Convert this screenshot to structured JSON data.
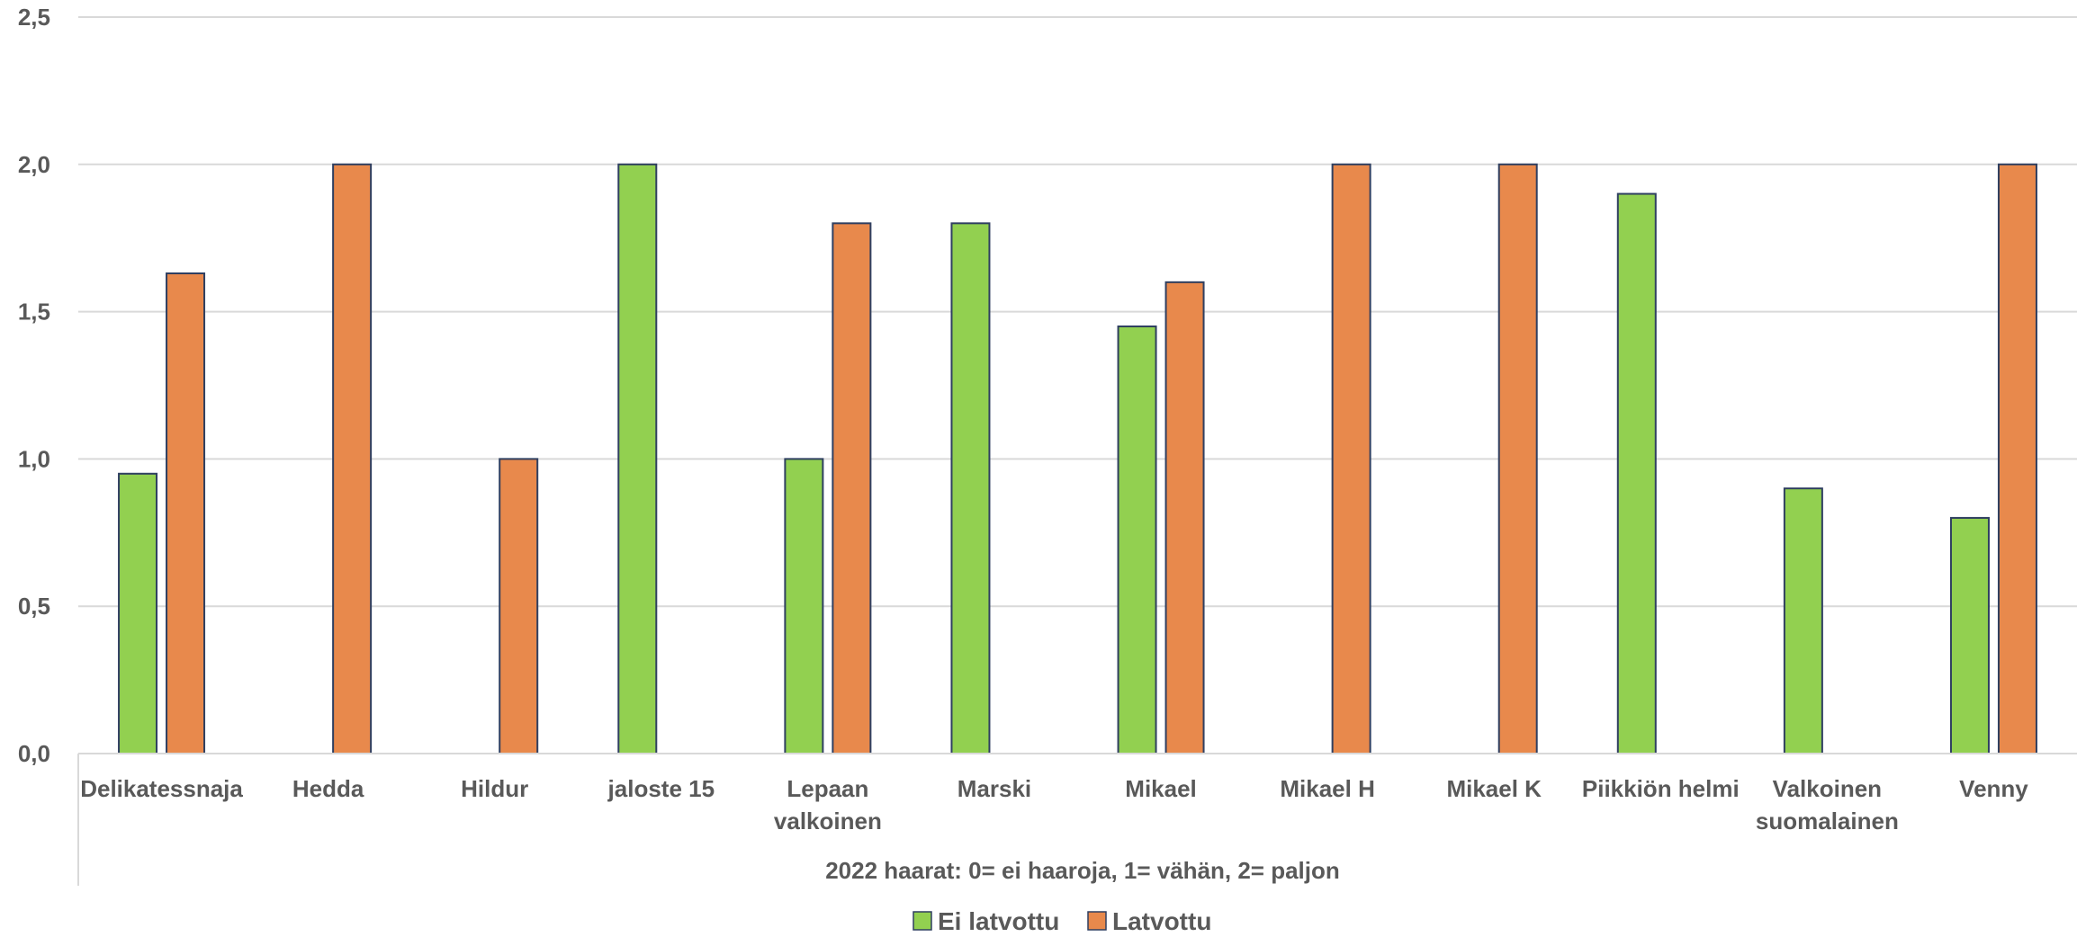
{
  "colors": {
    "ei_latvottu": "#92d050",
    "latvottu": "#e8894c",
    "bar_outline": "#2f3f60",
    "grid": "#d9d9d9",
    "text": "#595959"
  },
  "chart_data": {
    "type": "bar",
    "title": "",
    "xlabel": "2022 haarat: 0= ei haaroja, 1= vähän, 2= paljon",
    "ylabel": "",
    "ylim": [
      0,
      2.5
    ],
    "yticks": [
      "0,0",
      "0,5",
      "1,0",
      "1,5",
      "2,0",
      "2,5"
    ],
    "grid": true,
    "legend_position": "bottom",
    "categories": [
      [
        "Delikatessnaja"
      ],
      [
        "Hedda"
      ],
      [
        "Hildur"
      ],
      [
        "jaloste 15"
      ],
      [
        "Lepaan",
        "valkoinen"
      ],
      [
        "Marski"
      ],
      [
        "Mikael"
      ],
      [
        "Mikael H"
      ],
      [
        "Mikael K"
      ],
      [
        "Piikkiön helmi"
      ],
      [
        "Valkoinen",
        "suomalainen"
      ],
      [
        "Venny"
      ]
    ],
    "series": [
      {
        "name": "Ei latvottu",
        "color": "#92d050",
        "values": [
          0.95,
          null,
          null,
          2.0,
          1.0,
          1.8,
          1.45,
          null,
          null,
          1.9,
          0.9,
          0.8
        ]
      },
      {
        "name": "Latvottu",
        "color": "#e8894c",
        "values": [
          1.63,
          2.0,
          1.0,
          null,
          1.8,
          null,
          1.6,
          2.0,
          2.0,
          null,
          null,
          2.0
        ]
      }
    ]
  }
}
